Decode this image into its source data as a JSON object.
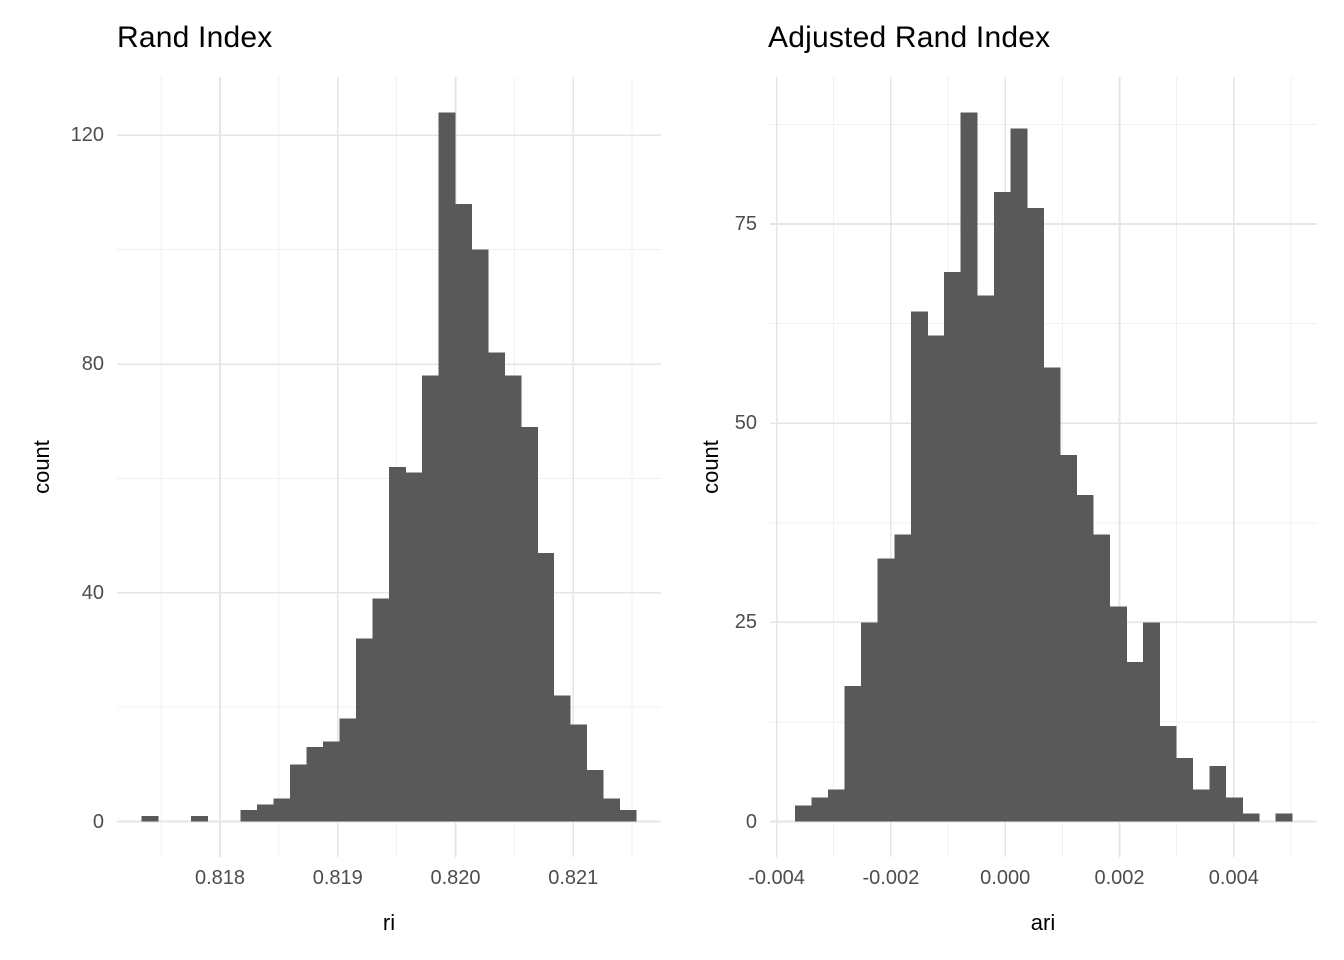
{
  "chart_data": [
    {
      "type": "bar",
      "subtype": "histogram",
      "title": "Rand Index",
      "xlabel": "ri",
      "ylabel": "count",
      "bin_start": 0.817335,
      "bin_width": 0.00014,
      "counts": [
        1,
        0,
        0,
        1,
        0,
        0,
        2,
        3,
        4,
        10,
        13,
        14,
        18,
        32,
        39,
        62,
        61,
        78,
        124,
        108,
        100,
        82,
        78,
        69,
        47,
        22,
        17,
        9,
        4,
        2
      ],
      "total_observations": 1000,
      "x_ticks": [
        {
          "value": 0.818,
          "label": "0.818"
        },
        {
          "value": 0.819,
          "label": "0.819"
        },
        {
          "value": 0.82,
          "label": "0.820"
        },
        {
          "value": 0.821,
          "label": "0.821"
        }
      ],
      "x_minor": [
        0.8175,
        0.8185,
        0.8195,
        0.8205,
        0.8215
      ],
      "y_ticks": [
        {
          "value": 0,
          "label": "0"
        },
        {
          "value": 40,
          "label": "40"
        },
        {
          "value": 80,
          "label": "80"
        },
        {
          "value": 120,
          "label": "120"
        }
      ],
      "y_minor": [
        20,
        60,
        100
      ],
      "xlim": [
        0.817125,
        0.821745
      ],
      "ylim": [
        -6.2,
        130.2
      ],
      "grid": true,
      "legend": "none"
    },
    {
      "type": "bar",
      "subtype": "histogram",
      "title": "Adjusted Rand Index",
      "xlabel": "ari",
      "ylabel": "count",
      "bin_start": -0.00368,
      "bin_width": 0.00029,
      "counts": [
        2,
        3,
        4,
        17,
        25,
        33,
        36,
        64,
        61,
        69,
        89,
        66,
        79,
        87,
        77,
        57,
        46,
        41,
        36,
        27,
        20,
        25,
        12,
        8,
        4,
        7,
        3,
        1,
        0,
        1
      ],
      "total_observations": 1000,
      "x_ticks": [
        {
          "value": -0.004,
          "label": "-0.004"
        },
        {
          "value": -0.002,
          "label": "-0.002"
        },
        {
          "value": 0.0,
          "label": "0.000"
        },
        {
          "value": 0.002,
          "label": "0.002"
        },
        {
          "value": 0.004,
          "label": "0.004"
        }
      ],
      "x_minor": [
        -0.003,
        -0.001,
        0.001,
        0.003,
        0.005
      ],
      "y_ticks": [
        {
          "value": 0,
          "label": "0"
        },
        {
          "value": 25,
          "label": "25"
        },
        {
          "value": 50,
          "label": "50"
        },
        {
          "value": 75,
          "label": "75"
        }
      ],
      "y_minor": [
        12.5,
        37.5,
        62.5,
        87.5
      ],
      "xlim": [
        -0.004115,
        0.005455
      ],
      "ylim": [
        -4.45,
        93.45
      ],
      "grid": true,
      "legend": "none"
    }
  ],
  "colors": {
    "bar": "#595959",
    "grid_major": "#e6e6e6",
    "grid_minor": "#f1f1f1",
    "tick_label": "#4d4d4d",
    "text": "#000000",
    "background": "#ffffff"
  }
}
